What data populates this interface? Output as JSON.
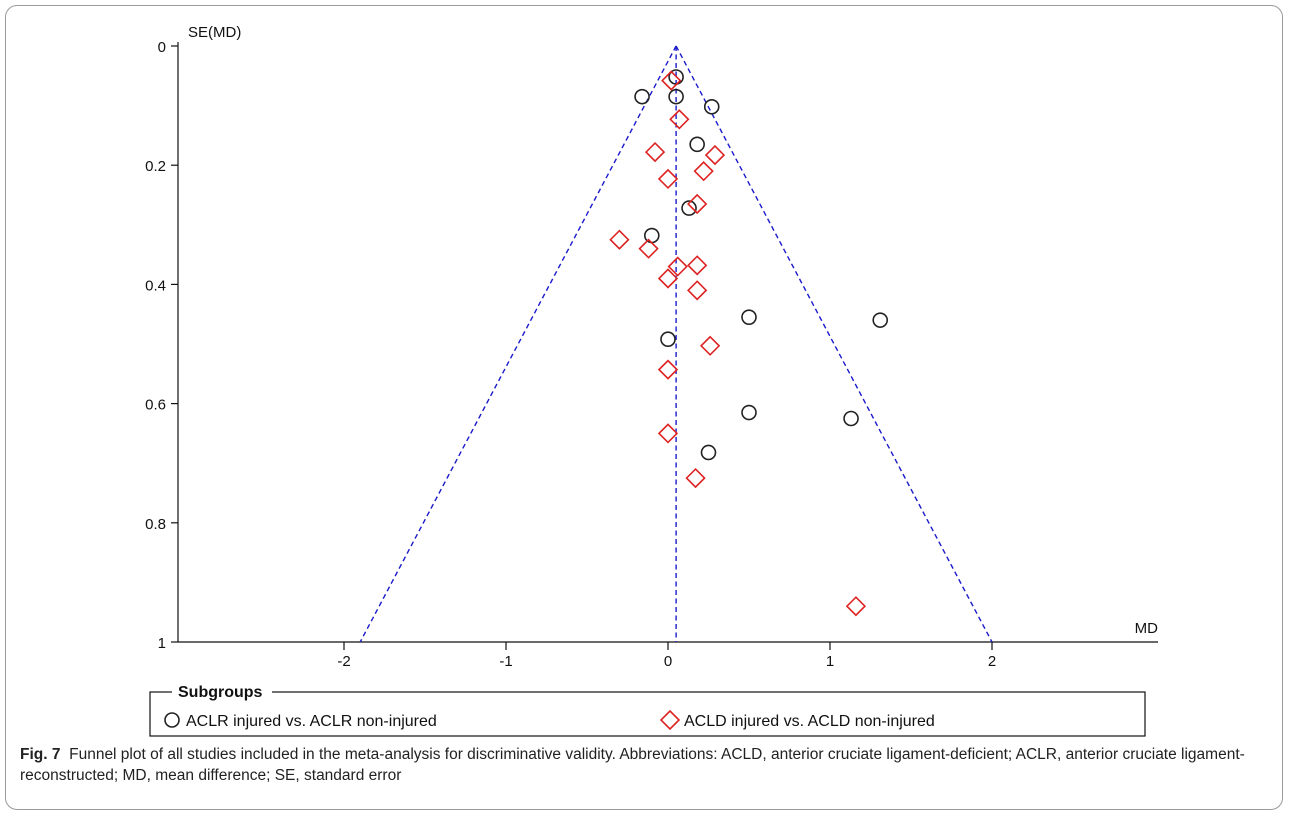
{
  "chart_data": {
    "type": "scatter",
    "subtype": "funnel",
    "xlabel": "MD",
    "ylabel": "SE(MD)",
    "xlim": [
      -2.9,
      3.0
    ],
    "ylim": [
      0,
      1
    ],
    "y_inverted": true,
    "x_ticks": [
      -2,
      -1,
      0,
      1,
      2
    ],
    "x_tick_labels": [
      "-2",
      "-1",
      "0",
      "1",
      "2"
    ],
    "y_ticks": [
      0,
      0.2,
      0.4,
      0.6,
      0.8,
      1
    ],
    "y_tick_labels": [
      "0",
      "0.2",
      "0.4",
      "0.6",
      "0.8",
      "1"
    ],
    "pooled_md": 0.05,
    "funnel_bottom_x": [
      -1.9,
      2.0
    ],
    "line_color": "#1a1acc",
    "grid": false,
    "legend": {
      "title": "Subgroups",
      "placement": "bottom"
    },
    "series": [
      {
        "name": "ACLR injured vs. ACLR non-injured",
        "marker": "circle",
        "color": "#222222",
        "points": [
          {
            "x": 0.05,
            "y": 0.052
          },
          {
            "x": -0.16,
            "y": 0.085
          },
          {
            "x": 0.05,
            "y": 0.085
          },
          {
            "x": 0.27,
            "y": 0.102
          },
          {
            "x": 0.18,
            "y": 0.165
          },
          {
            "x": 0.13,
            "y": 0.272
          },
          {
            "x": -0.1,
            "y": 0.318
          },
          {
            "x": 0.5,
            "y": 0.455
          },
          {
            "x": 1.31,
            "y": 0.46
          },
          {
            "x": 0.0,
            "y": 0.492
          },
          {
            "x": 0.5,
            "y": 0.615
          },
          {
            "x": 1.13,
            "y": 0.625
          },
          {
            "x": 0.25,
            "y": 0.682
          }
        ]
      },
      {
        "name": "ACLD injured vs. ACLD non-injured",
        "marker": "diamond",
        "color": "#dd2222",
        "points": [
          {
            "x": 0.02,
            "y": 0.058
          },
          {
            "x": 0.07,
            "y": 0.123
          },
          {
            "x": -0.08,
            "y": 0.178
          },
          {
            "x": 0.29,
            "y": 0.183
          },
          {
            "x": 0.22,
            "y": 0.21
          },
          {
            "x": 0.0,
            "y": 0.223
          },
          {
            "x": 0.18,
            "y": 0.265
          },
          {
            "x": -0.3,
            "y": 0.325
          },
          {
            "x": -0.12,
            "y": 0.34
          },
          {
            "x": 0.06,
            "y": 0.37
          },
          {
            "x": 0.18,
            "y": 0.368
          },
          {
            "x": 0.0,
            "y": 0.39
          },
          {
            "x": 0.18,
            "y": 0.41
          },
          {
            "x": 0.26,
            "y": 0.503
          },
          {
            "x": 0.0,
            "y": 0.543
          },
          {
            "x": 0.0,
            "y": 0.65
          },
          {
            "x": 0.17,
            "y": 0.725
          },
          {
            "x": 1.16,
            "y": 0.94
          }
        ]
      }
    ]
  },
  "caption": {
    "label": "Fig. 7",
    "text": "Funnel plot of all studies included in the meta-analysis for discriminative validity. Abbreviations: ACLD, anterior cruciate ligament-deficient; ACLR, anterior cruciate ligament-reconstructed; MD, mean difference; SE, standard error"
  }
}
